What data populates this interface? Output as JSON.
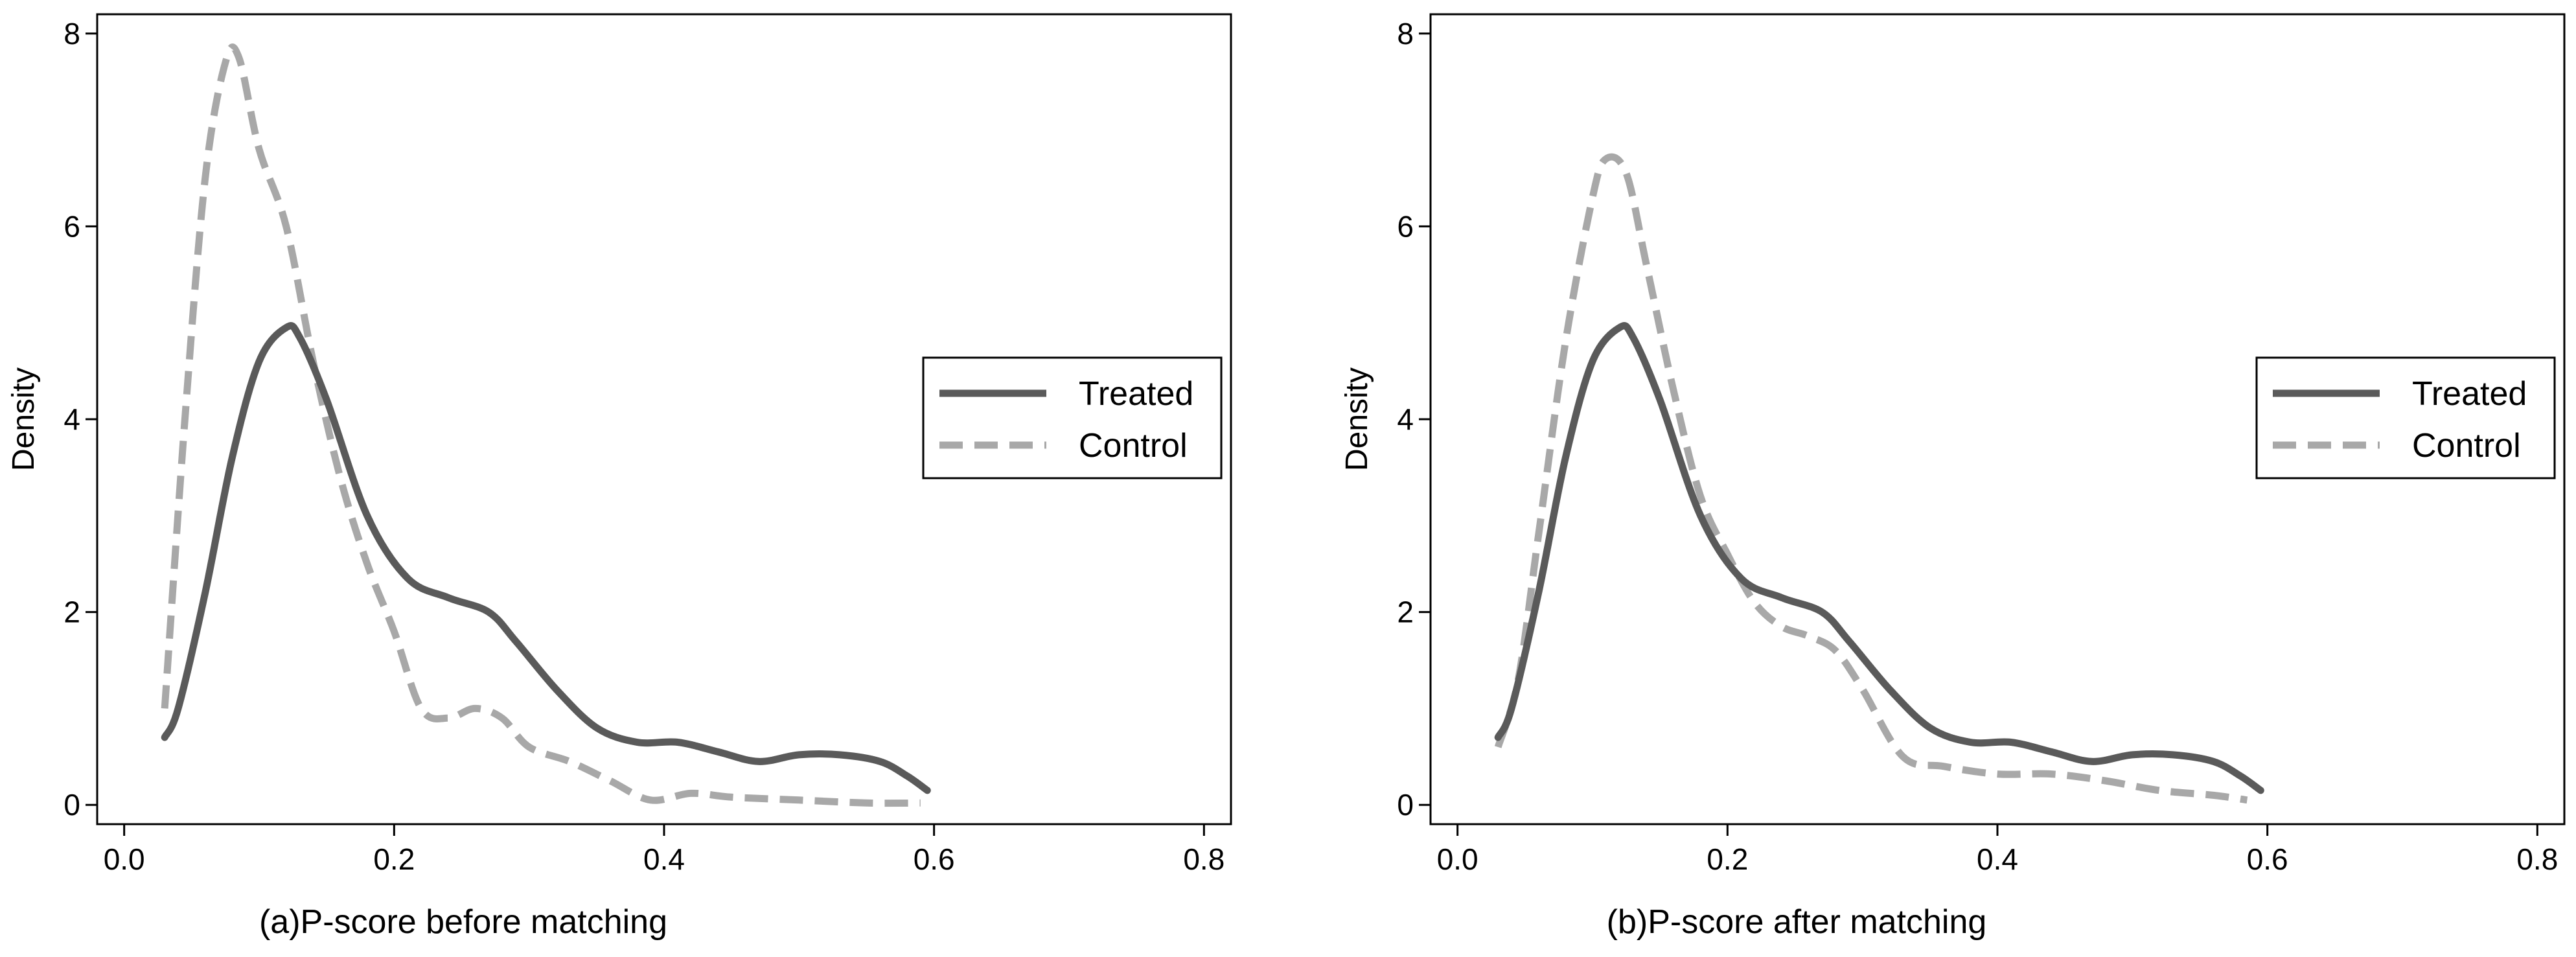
{
  "chart_data": [
    {
      "type": "line",
      "title": "",
      "xlabel": "(a)P-score before matching",
      "ylabel": "Density",
      "xlim": [
        -0.02,
        0.82
      ],
      "ylim": [
        -0.2,
        8.2
      ],
      "xticks": [
        0,
        0.2,
        0.4,
        0.6,
        0.8
      ],
      "xtick_labels": [
        "0.0",
        "0.2",
        "0.4",
        "0.6",
        "0.8"
      ],
      "yticks": [
        0,
        2,
        4,
        6,
        8
      ],
      "ytick_labels": [
        "0",
        "2",
        "4",
        "6",
        "8"
      ],
      "grid": false,
      "legend_position": "right",
      "series": [
        {
          "name": "Treated",
          "style": "solid",
          "color": "#5a5a5a",
          "x": [
            0.03,
            0.04,
            0.06,
            0.08,
            0.1,
            0.12,
            0.13,
            0.15,
            0.18,
            0.21,
            0.24,
            0.27,
            0.29,
            0.32,
            0.35,
            0.38,
            0.41,
            0.44,
            0.47,
            0.5,
            0.53,
            0.56,
            0.58,
            0.595
          ],
          "values": [
            0.7,
            1.0,
            2.2,
            3.6,
            4.6,
            4.95,
            4.85,
            4.2,
            3.0,
            2.35,
            2.15,
            2.0,
            1.7,
            1.2,
            0.8,
            0.65,
            0.65,
            0.55,
            0.45,
            0.52,
            0.52,
            0.45,
            0.3,
            0.15
          ]
        },
        {
          "name": "Control",
          "style": "dashed",
          "color": "#a8a8a8",
          "x": [
            0.03,
            0.045,
            0.06,
            0.075,
            0.085,
            0.1,
            0.12,
            0.14,
            0.16,
            0.18,
            0.2,
            0.22,
            0.24,
            0.26,
            0.28,
            0.3,
            0.33,
            0.36,
            0.39,
            0.42,
            0.45,
            0.5,
            0.55,
            0.59
          ],
          "values": [
            1.0,
            4.0,
            6.5,
            7.7,
            7.75,
            6.8,
            6.0,
            4.6,
            3.4,
            2.5,
            1.8,
            1.0,
            0.9,
            1.0,
            0.9,
            0.6,
            0.45,
            0.25,
            0.05,
            0.12,
            0.08,
            0.05,
            0.02,
            0.02
          ]
        }
      ]
    },
    {
      "type": "line",
      "title": "",
      "xlabel": "(b)P-score after matching",
      "ylabel": "Density",
      "xlim": [
        -0.02,
        0.82
      ],
      "ylim": [
        -0.2,
        8.2
      ],
      "xticks": [
        0,
        0.2,
        0.4,
        0.6,
        0.8
      ],
      "xtick_labels": [
        "0.0",
        "0.2",
        "0.4",
        "0.6",
        "0.8"
      ],
      "yticks": [
        0,
        2,
        4,
        6,
        8
      ],
      "ytick_labels": [
        "0",
        "2",
        "4",
        "6",
        "8"
      ],
      "grid": false,
      "legend_position": "right",
      "series": [
        {
          "name": "Treated",
          "style": "solid",
          "color": "#5a5a5a",
          "x": [
            0.03,
            0.04,
            0.06,
            0.08,
            0.1,
            0.12,
            0.13,
            0.15,
            0.18,
            0.21,
            0.24,
            0.27,
            0.29,
            0.32,
            0.35,
            0.38,
            0.41,
            0.44,
            0.47,
            0.5,
            0.53,
            0.56,
            0.58,
            0.595
          ],
          "values": [
            0.7,
            1.0,
            2.2,
            3.6,
            4.6,
            4.95,
            4.85,
            4.2,
            3.0,
            2.35,
            2.15,
            2.0,
            1.7,
            1.2,
            0.8,
            0.65,
            0.65,
            0.55,
            0.45,
            0.52,
            0.52,
            0.45,
            0.3,
            0.15
          ]
        },
        {
          "name": "Control",
          "style": "dashed",
          "color": "#a8a8a8",
          "x": [
            0.03,
            0.045,
            0.06,
            0.08,
            0.1,
            0.11,
            0.125,
            0.14,
            0.16,
            0.18,
            0.2,
            0.22,
            0.24,
            0.26,
            0.28,
            0.3,
            0.33,
            0.36,
            0.4,
            0.44,
            0.48,
            0.52,
            0.56,
            0.585
          ],
          "values": [
            0.6,
            1.3,
            2.8,
            4.8,
            6.3,
            6.7,
            6.55,
            5.6,
            4.3,
            3.2,
            2.6,
            2.1,
            1.85,
            1.75,
            1.6,
            1.2,
            0.5,
            0.4,
            0.32,
            0.32,
            0.25,
            0.15,
            0.1,
            0.05
          ]
        }
      ]
    }
  ]
}
